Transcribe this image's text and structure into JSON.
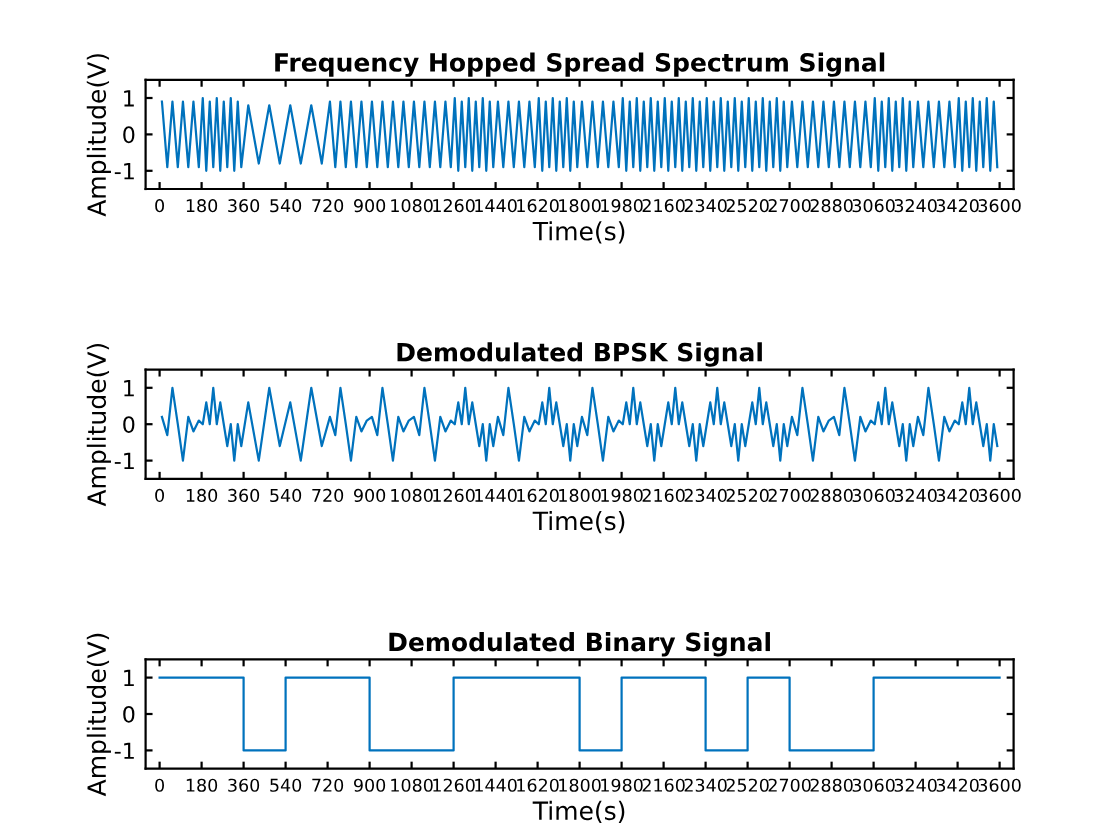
{
  "chart_data": [
    {
      "type": "line",
      "title": "Frequency Hopped Spread Spectrum Signal",
      "xlabel": "Time(s)",
      "ylabel": "Amplitude(V)",
      "xlim": [
        -60,
        3660
      ],
      "ylim": [
        -1.5,
        1.5
      ],
      "xticks": [
        0,
        180,
        360,
        540,
        720,
        900,
        1080,
        1260,
        1440,
        1620,
        1800,
        1980,
        2160,
        2340,
        2520,
        2700,
        2880,
        3060,
        3240,
        3420,
        3600
      ],
      "yticks": [
        -1,
        0,
        1
      ],
      "series": [
        {
          "color": "#0072bd",
          "x": [
            10,
            33,
            55,
            78,
            100,
            123,
            145,
            168,
            185,
            200,
            215,
            230,
            245,
            260,
            275,
            290,
            305,
            320,
            335,
            350,
            380,
            425,
            470,
            515,
            560,
            605,
            650,
            695,
            730,
            753,
            775,
            798,
            820,
            843,
            865,
            888,
            910,
            933,
            955,
            978,
            1000,
            1023,
            1045,
            1068,
            1090,
            1113,
            1135,
            1158,
            1180,
            1203,
            1225,
            1248,
            1265,
            1280,
            1295,
            1310,
            1325,
            1340,
            1355,
            1370,
            1385,
            1400,
            1415,
            1430,
            1450,
            1473,
            1495,
            1518,
            1540,
            1563,
            1585,
            1608,
            1625,
            1640,
            1655,
            1670,
            1685,
            1700,
            1715,
            1730,
            1745,
            1760,
            1775,
            1790,
            1810,
            1833,
            1855,
            1878,
            1900,
            1923,
            1945,
            1968,
            1985,
            2000,
            2015,
            2030,
            2045,
            2060,
            2075,
            2090,
            2105,
            2120,
            2135,
            2150,
            2165,
            2180,
            2195,
            2210,
            2225,
            2240,
            2255,
            2270,
            2285,
            2300,
            2315,
            2330,
            2345,
            2360,
            2375,
            2390,
            2405,
            2420,
            2435,
            2450,
            2465,
            2480,
            2495,
            2510,
            2525,
            2540,
            2555,
            2570,
            2585,
            2600,
            2615,
            2630,
            2645,
            2660,
            2675,
            2690,
            2710,
            2733,
            2755,
            2778,
            2800,
            2823,
            2845,
            2868,
            2890,
            2913,
            2935,
            2958,
            2980,
            3003,
            3025,
            3048,
            3065,
            3080,
            3095,
            3110,
            3125,
            3140,
            3155,
            3170,
            3185,
            3200,
            3215,
            3230,
            3250,
            3273,
            3295,
            3318,
            3340,
            3363,
            3385,
            3408,
            3425,
            3440,
            3455,
            3470,
            3485,
            3500,
            3515,
            3530,
            3545,
            3560,
            3575,
            3590
          ],
          "values": [
            0.9,
            -0.9,
            0.9,
            -0.9,
            0.9,
            -0.9,
            0.9,
            -0.9,
            1,
            -1,
            0.9,
            -0.9,
            1,
            -1,
            0.9,
            -0.9,
            1,
            -1,
            0.9,
            -0.9,
            0.8,
            -0.8,
            0.8,
            -0.8,
            0.8,
            -0.8,
            0.8,
            -0.8,
            0.9,
            -0.9,
            0.9,
            -0.9,
            0.9,
            -0.9,
            0.9,
            -0.9,
            0.9,
            -0.9,
            0.9,
            -0.9,
            0.9,
            -0.9,
            0.9,
            -0.9,
            0.9,
            -0.9,
            0.9,
            -0.9,
            0.9,
            -0.9,
            0.9,
            -0.9,
            1,
            -1,
            0.9,
            -0.9,
            1,
            -1,
            0.9,
            -0.9,
            1,
            -1,
            0.9,
            -0.9,
            0.9,
            -0.9,
            0.9,
            -0.9,
            0.9,
            -0.9,
            0.9,
            -0.9,
            1,
            -1,
            0.9,
            -0.9,
            1,
            -1,
            0.9,
            -0.9,
            1,
            -1,
            0.9,
            -0.9,
            0.9,
            -0.9,
            0.9,
            -0.9,
            0.9,
            -0.9,
            0.9,
            -0.9,
            1,
            -1,
            0.9,
            -0.9,
            1,
            -1,
            0.9,
            -0.9,
            1,
            -1,
            0.9,
            -0.9,
            1,
            -1,
            0.9,
            -0.9,
            1,
            -1,
            0.9,
            -0.9,
            1,
            -1,
            0.9,
            -0.9,
            1,
            -1,
            0.9,
            -0.9,
            1,
            -1,
            0.9,
            -0.9,
            1,
            -1,
            0.9,
            -0.9,
            1,
            -1,
            0.9,
            -0.9,
            1,
            -1,
            0.9,
            -0.9,
            1,
            -1,
            0.9,
            -0.9,
            0.9,
            -0.9,
            0.9,
            -0.9,
            0.9,
            -0.9,
            0.9,
            -0.9,
            0.9,
            -0.9,
            0.9,
            -0.9,
            0.9,
            -0.9,
            0.9,
            -0.9,
            1,
            -1,
            0.9,
            -0.9,
            1,
            -1,
            0.9,
            -0.9,
            1,
            -1,
            0.9,
            -0.9,
            0.9,
            -0.9,
            0.9,
            -0.9,
            0.9,
            -0.9,
            0.9,
            -0.9,
            1,
            -1,
            0.9,
            -0.9,
            1,
            -1,
            0.9,
            -0.9,
            1,
            -1,
            0.9,
            -0.9
          ]
        }
      ]
    },
    {
      "type": "line",
      "title": "Demodulated BPSK Signal",
      "xlabel": "Time(s)",
      "ylabel": "Amplitude(V)",
      "xlim": [
        -60,
        3660
      ],
      "ylim": [
        -1.5,
        1.5
      ],
      "xticks": [
        0,
        180,
        360,
        540,
        720,
        900,
        1080,
        1260,
        1440,
        1620,
        1800,
        1980,
        2160,
        2340,
        2520,
        2700,
        2880,
        3060,
        3240,
        3420,
        3600
      ],
      "yticks": [
        -1,
        0,
        1
      ],
      "series": [
        {
          "color": "#0072bd",
          "x": [
            10,
            33,
            55,
            78,
            100,
            123,
            145,
            168,
            185,
            200,
            215,
            230,
            245,
            260,
            275,
            290,
            305,
            320,
            335,
            350,
            380,
            425,
            470,
            515,
            560,
            605,
            650,
            695,
            730,
            753,
            775,
            798,
            820,
            843,
            865,
            888,
            910,
            933,
            955,
            978,
            1000,
            1023,
            1045,
            1068,
            1090,
            1113,
            1135,
            1158,
            1180,
            1203,
            1225,
            1248,
            1265,
            1280,
            1295,
            1310,
            1325,
            1340,
            1355,
            1370,
            1385,
            1400,
            1415,
            1430,
            1450,
            1473,
            1495,
            1518,
            1540,
            1563,
            1585,
            1608,
            1625,
            1640,
            1655,
            1670,
            1685,
            1700,
            1715,
            1730,
            1745,
            1760,
            1775,
            1790,
            1810,
            1833,
            1855,
            1878,
            1900,
            1923,
            1945,
            1968,
            1985,
            2000,
            2015,
            2030,
            2045,
            2060,
            2075,
            2090,
            2105,
            2120,
            2135,
            2150,
            2165,
            2180,
            2195,
            2210,
            2225,
            2240,
            2255,
            2270,
            2285,
            2300,
            2315,
            2330,
            2345,
            2360,
            2375,
            2390,
            2405,
            2420,
            2435,
            2450,
            2465,
            2480,
            2495,
            2510,
            2525,
            2540,
            2555,
            2570,
            2585,
            2600,
            2615,
            2630,
            2645,
            2660,
            2675,
            2690,
            2710,
            2733,
            2755,
            2778,
            2800,
            2823,
            2845,
            2868,
            2890,
            2913,
            2935,
            2958,
            2980,
            3003,
            3025,
            3048,
            3065,
            3080,
            3095,
            3110,
            3125,
            3140,
            3155,
            3170,
            3185,
            3200,
            3215,
            3230,
            3250,
            3273,
            3295,
            3318,
            3340,
            3363,
            3385,
            3408,
            3425,
            3440,
            3455,
            3470,
            3485,
            3500,
            3515,
            3530,
            3545,
            3560,
            3575,
            3590
          ],
          "values": [
            0.2,
            -0.3,
            1,
            0,
            -1,
            0.2,
            -0.2,
            0.1,
            0,
            0.6,
            0,
            1,
            0,
            0.6,
            0,
            -0.6,
            0,
            -1,
            0,
            -0.6,
            0.6,
            -1,
            1,
            -0.6,
            0.6,
            -1,
            1,
            -0.6,
            0.2,
            -0.3,
            1,
            0,
            -1,
            0.2,
            -0.2,
            0.1,
            0.2,
            -0.3,
            1,
            0,
            -1,
            0.2,
            -0.2,
            0.1,
            0.2,
            -0.3,
            1,
            0,
            -1,
            0.2,
            -0.2,
            0.1,
            0,
            0.6,
            0,
            1,
            0,
            0.6,
            0,
            -0.6,
            0,
            -1,
            0,
            -0.6,
            0.2,
            -0.3,
            1,
            0,
            -1,
            0.2,
            -0.2,
            0.1,
            0,
            0.6,
            0,
            1,
            0,
            0.6,
            0,
            -0.6,
            0,
            -1,
            0,
            -0.6,
            0.2,
            -0.3,
            1,
            0,
            -1,
            0.2,
            -0.2,
            0.1,
            0,
            0.6,
            0,
            1,
            0,
            0.6,
            0,
            -0.6,
            0,
            -1,
            0,
            -0.6,
            0,
            0.6,
            0,
            1,
            0,
            0.6,
            0,
            -0.6,
            0,
            -1,
            0,
            -0.6,
            0,
            0.6,
            0,
            1,
            0,
            0.6,
            0,
            -0.6,
            0,
            -1,
            0,
            -0.6,
            0,
            0.6,
            0,
            1,
            0,
            0.6,
            0,
            -0.6,
            0,
            -1,
            0,
            -0.6,
            0.2,
            -0.3,
            1,
            0,
            -1,
            0.2,
            -0.2,
            0.1,
            0.2,
            -0.3,
            1,
            0,
            -1,
            0.2,
            -0.2,
            0.1,
            0,
            0.6,
            0,
            1,
            0,
            0.6,
            0,
            -0.6,
            0,
            -1,
            0,
            -0.6,
            0.2,
            -0.3,
            1,
            0,
            -1,
            0.2,
            -0.2,
            0.1,
            0,
            0.6,
            0,
            1,
            0,
            0.6,
            0,
            -0.6,
            0,
            -1,
            0,
            -0.6
          ]
        }
      ]
    },
    {
      "type": "step",
      "title": "Demodulated Binary Signal",
      "xlabel": "Time(s)",
      "ylabel": "Amplitude(V)",
      "xlim": [
        -60,
        3660
      ],
      "ylim": [
        -1.5,
        1.5
      ],
      "xticks": [
        0,
        180,
        360,
        540,
        720,
        900,
        1080,
        1260,
        1440,
        1620,
        1800,
        1980,
        2160,
        2340,
        2520,
        2700,
        2880,
        3060,
        3240,
        3420,
        3600
      ],
      "yticks": [
        -1,
        0,
        1
      ],
      "series": [
        {
          "color": "#0072bd",
          "x": [
            0,
            360,
            540,
            900,
            1260,
            1800,
            1980,
            2340,
            2520,
            2700,
            3060,
            3600
          ],
          "values": [
            1,
            -1,
            1,
            -1,
            1,
            -1,
            1,
            -1,
            1,
            -1,
            1,
            1
          ]
        }
      ]
    }
  ]
}
